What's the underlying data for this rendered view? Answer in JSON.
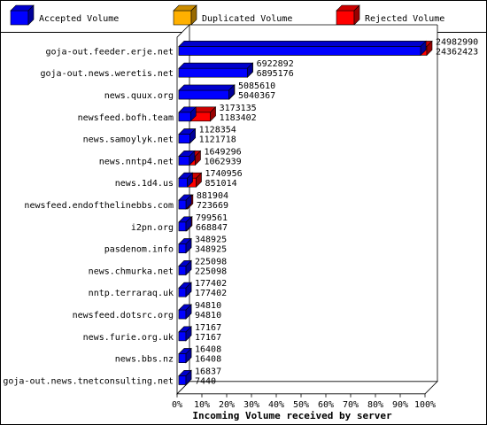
{
  "chart_data": {
    "type": "bar",
    "orientation": "horizontal",
    "stacking": "overlaid",
    "xlabel": "Incoming Volume received by server",
    "xlim": [
      0,
      100
    ],
    "x_ticks": [
      "0%",
      "10%",
      "20%",
      "30%",
      "40%",
      "50%",
      "60%",
      "70%",
      "80%",
      "90%",
      "100%"
    ],
    "max_value": 24982990,
    "legend_position": "top",
    "series": [
      {
        "name": "Accepted Volume",
        "key": "accepted",
        "color": "#0000ff"
      },
      {
        "name": "Duplicated Volume",
        "key": "duplicated",
        "color": "#ffb000"
      },
      {
        "name": "Rejected Volume",
        "key": "rejected",
        "color": "#ff0000"
      }
    ],
    "categories": [
      "goja-out.feeder.erje.net",
      "goja-out.news.weretis.net",
      "news.quux.org",
      "newsfeed.bofh.team",
      "news.samoylyk.net",
      "news.nntp4.net",
      "news.1d4.us",
      "newsfeed.endofthelinebbs.com",
      "i2pn.org",
      "pasdenom.info",
      "news.chmurka.net",
      "nntp.terraraq.uk",
      "newsfeed.dotsrc.org",
      "news.furie.org.uk",
      "news.bbs.nz",
      "goja-out.news.tnetconsulting.net"
    ],
    "total": [
      24982990,
      6922892,
      5085610,
      3173135,
      1128354,
      1649296,
      1740956,
      881904,
      799561,
      348925,
      225098,
      177402,
      94810,
      17167,
      16408,
      16837
    ],
    "accepted": [
      24362423,
      6895176,
      5040367,
      1183402,
      1121718,
      1062939,
      851014,
      723669,
      668847,
      348925,
      225098,
      177402,
      94810,
      17167,
      16408,
      7440
    ]
  }
}
